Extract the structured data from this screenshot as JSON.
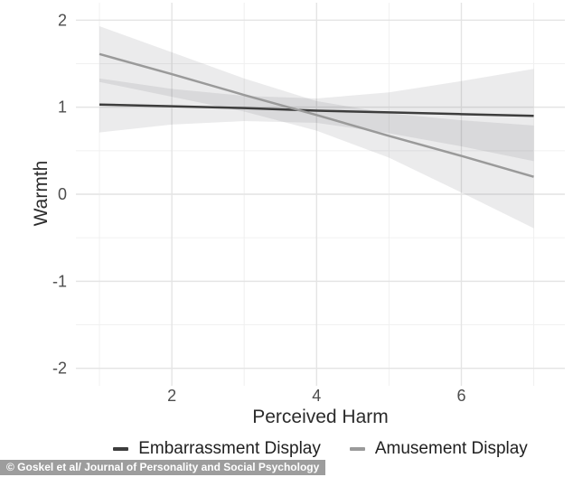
{
  "chart_data": {
    "type": "line",
    "title": "",
    "xlabel": "Perceived Harm",
    "ylabel": "Warmth",
    "xlim": [
      0.675,
      7.43
    ],
    "ylim": [
      -2.2,
      2.2
    ],
    "x_ticks": [
      2,
      4,
      6
    ],
    "x_minor_ticks": [
      1,
      3,
      5,
      7
    ],
    "y_ticks": [
      2,
      1,
      0,
      -1,
      -2
    ],
    "y_minor_ticks": [
      1.5,
      0.5,
      -0.5,
      -1.5
    ],
    "grid": "major+minor, no axis lines, white panel",
    "legend_position": "bottom-center",
    "series": [
      {
        "name": "Embarrassment Display",
        "color": "#3d3d3d",
        "band_color": "rgba(100,100,110,0.13)",
        "x": [
          1,
          2,
          3,
          4,
          5,
          6,
          7
        ],
        "y": [
          1.03,
          1.01,
          0.99,
          0.96,
          0.94,
          0.92,
          0.9
        ],
        "ci_upper": [
          1.33,
          1.21,
          1.13,
          1.1,
          1.17,
          1.3,
          1.44
        ],
        "ci_lower": [
          0.71,
          0.8,
          0.84,
          0.82,
          0.7,
          0.55,
          0.38
        ]
      },
      {
        "name": "Amusement Display",
        "color": "#9a9a9a",
        "band_color": "rgba(100,100,110,0.13)",
        "x": [
          1,
          2,
          3,
          4,
          5,
          6,
          7
        ],
        "y": [
          1.61,
          1.38,
          1.14,
          0.91,
          0.67,
          0.44,
          0.2
        ],
        "ci_upper": [
          1.93,
          1.63,
          1.33,
          1.07,
          0.93,
          0.85,
          0.79
        ],
        "ci_lower": [
          1.29,
          1.12,
          0.95,
          0.73,
          0.42,
          0.02,
          -0.39
        ]
      }
    ],
    "colors": {
      "grid_major": "#e4e4e4",
      "grid_minor": "#f0f0f0",
      "tick_label": "#4d4d4d",
      "axis_label": "#2b2b2b"
    }
  },
  "caption": {
    "text": "© Goskel et al/ Journal of Personality and Social Psychology",
    "bg": "#9d9d9d",
    "color": "#ffffff"
  }
}
